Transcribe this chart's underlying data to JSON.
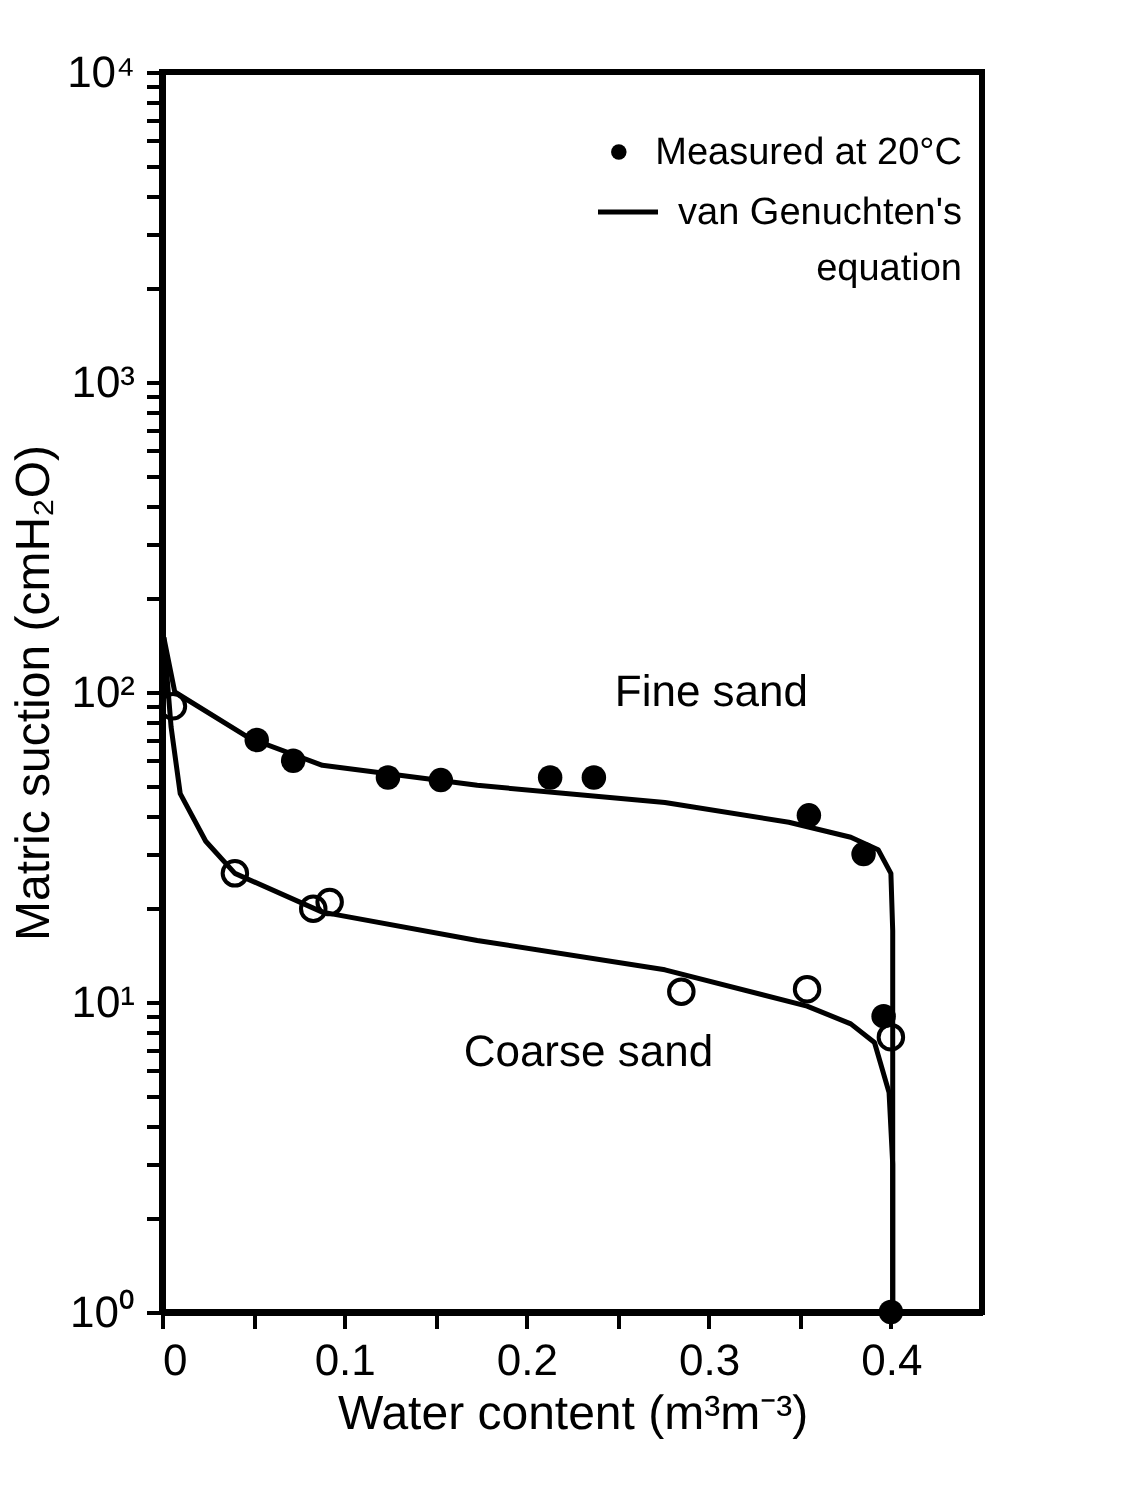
{
  "chart_data": {
    "type": "scatter",
    "xlabel": "Water content  (m³m⁻³)",
    "ylabel": "Matric suction  (cmH₂O)",
    "log": "y",
    "xlim": [
      0,
      0.45
    ],
    "ylim": [
      1,
      10000
    ],
    "xticks": [
      0,
      {
        "value": 0.05,
        "label": null
      },
      0.1,
      {
        "value": 0.15,
        "label": null
      },
      0.2,
      {
        "value": 0.25,
        "label": null
      },
      0.3,
      {
        "value": 0.35,
        "label": null
      },
      0.4
    ],
    "yticks": [
      {
        "value": 1,
        "label": "10⁰"
      },
      {
        "value": 2,
        "label": null
      },
      {
        "value": 3,
        "label": null
      },
      {
        "value": 4,
        "label": null
      },
      {
        "value": 5,
        "label": null
      },
      {
        "value": 6,
        "label": null
      },
      {
        "value": 7,
        "label": null
      },
      {
        "value": 8,
        "label": null
      },
      {
        "value": 9,
        "label": null
      },
      {
        "value": 10,
        "label": "10¹"
      },
      {
        "value": 20,
        "label": null
      },
      {
        "value": 30,
        "label": null
      },
      {
        "value": 40,
        "label": null
      },
      {
        "value": 50,
        "label": null
      },
      {
        "value": 60,
        "label": null
      },
      {
        "value": 70,
        "label": null
      },
      {
        "value": 80,
        "label": null
      },
      {
        "value": 90,
        "label": null
      },
      {
        "value": 100,
        "label": "10²"
      },
      {
        "value": 200,
        "label": null
      },
      {
        "value": 300,
        "label": null
      },
      {
        "value": 400,
        "label": null
      },
      {
        "value": 500,
        "label": null
      },
      {
        "value": 600,
        "label": null
      },
      {
        "value": 700,
        "label": null
      },
      {
        "value": 800,
        "label": null
      },
      {
        "value": 900,
        "label": null
      },
      {
        "value": 1000,
        "label": "10³"
      },
      {
        "value": 2000,
        "label": null
      },
      {
        "value": 3000,
        "label": null
      },
      {
        "value": 4000,
        "label": null
      },
      {
        "value": 5000,
        "label": null
      },
      {
        "value": 6000,
        "label": null
      },
      {
        "value": 7000,
        "label": null
      },
      {
        "value": 8000,
        "label": null
      },
      {
        "value": 9000,
        "label": null
      },
      {
        "value": 10000,
        "label": "10⁴"
      }
    ],
    "grid": false,
    "legend": "top right",
    "series": [
      {
        "name": "Measured at 20°C",
        "marker": "circle",
        "color": "#000000",
        "x": [
          0.052,
          0.072,
          0.124,
          0.153,
          0.213,
          0.237,
          0.355,
          0.385,
          0.396,
          0.4
        ],
        "values": [
          70,
          60,
          53,
          52,
          53,
          53,
          40,
          30,
          9,
          1
        ]
      },
      {
        "marker": "circle",
        "color": "#000000",
        "x": [
          0.006,
          0.04,
          0.083,
          0.092,
          0.285,
          0.354,
          0.4
        ],
        "values": [
          90,
          26,
          20,
          21,
          10.8,
          11,
          7.7
        ]
      },
      {
        "name": "van Genuchten's equation",
        "type": "line",
        "marker": "none",
        "line_style": "solid",
        "color": "#000000",
        "x": [
          0.001,
          0.007,
          0.048,
          0.088,
          0.173,
          0.276,
          0.344,
          0.378,
          0.393,
          0.4,
          0.401,
          0.401
        ],
        "values": [
          150,
          100,
          71,
          58,
          50,
          44,
          38,
          34,
          31,
          26,
          17,
          1
        ]
      },
      {
        "type": "line",
        "marker": "none",
        "line_style": "solid",
        "color": "#000000",
        "x": [
          0.001,
          0.005,
          0.01,
          0.024,
          0.04,
          0.088,
          0.173,
          0.276,
          0.354,
          0.378,
          0.391,
          0.399,
          0.401,
          0.401
        ],
        "values": [
          150,
          77,
          47,
          33,
          26,
          19.5,
          15.8,
          12.7,
          9.7,
          8.5,
          7.4,
          5.1,
          3,
          1
        ]
      }
    ],
    "annotations": [
      "Fine sand",
      "Coarse sand"
    ]
  }
}
